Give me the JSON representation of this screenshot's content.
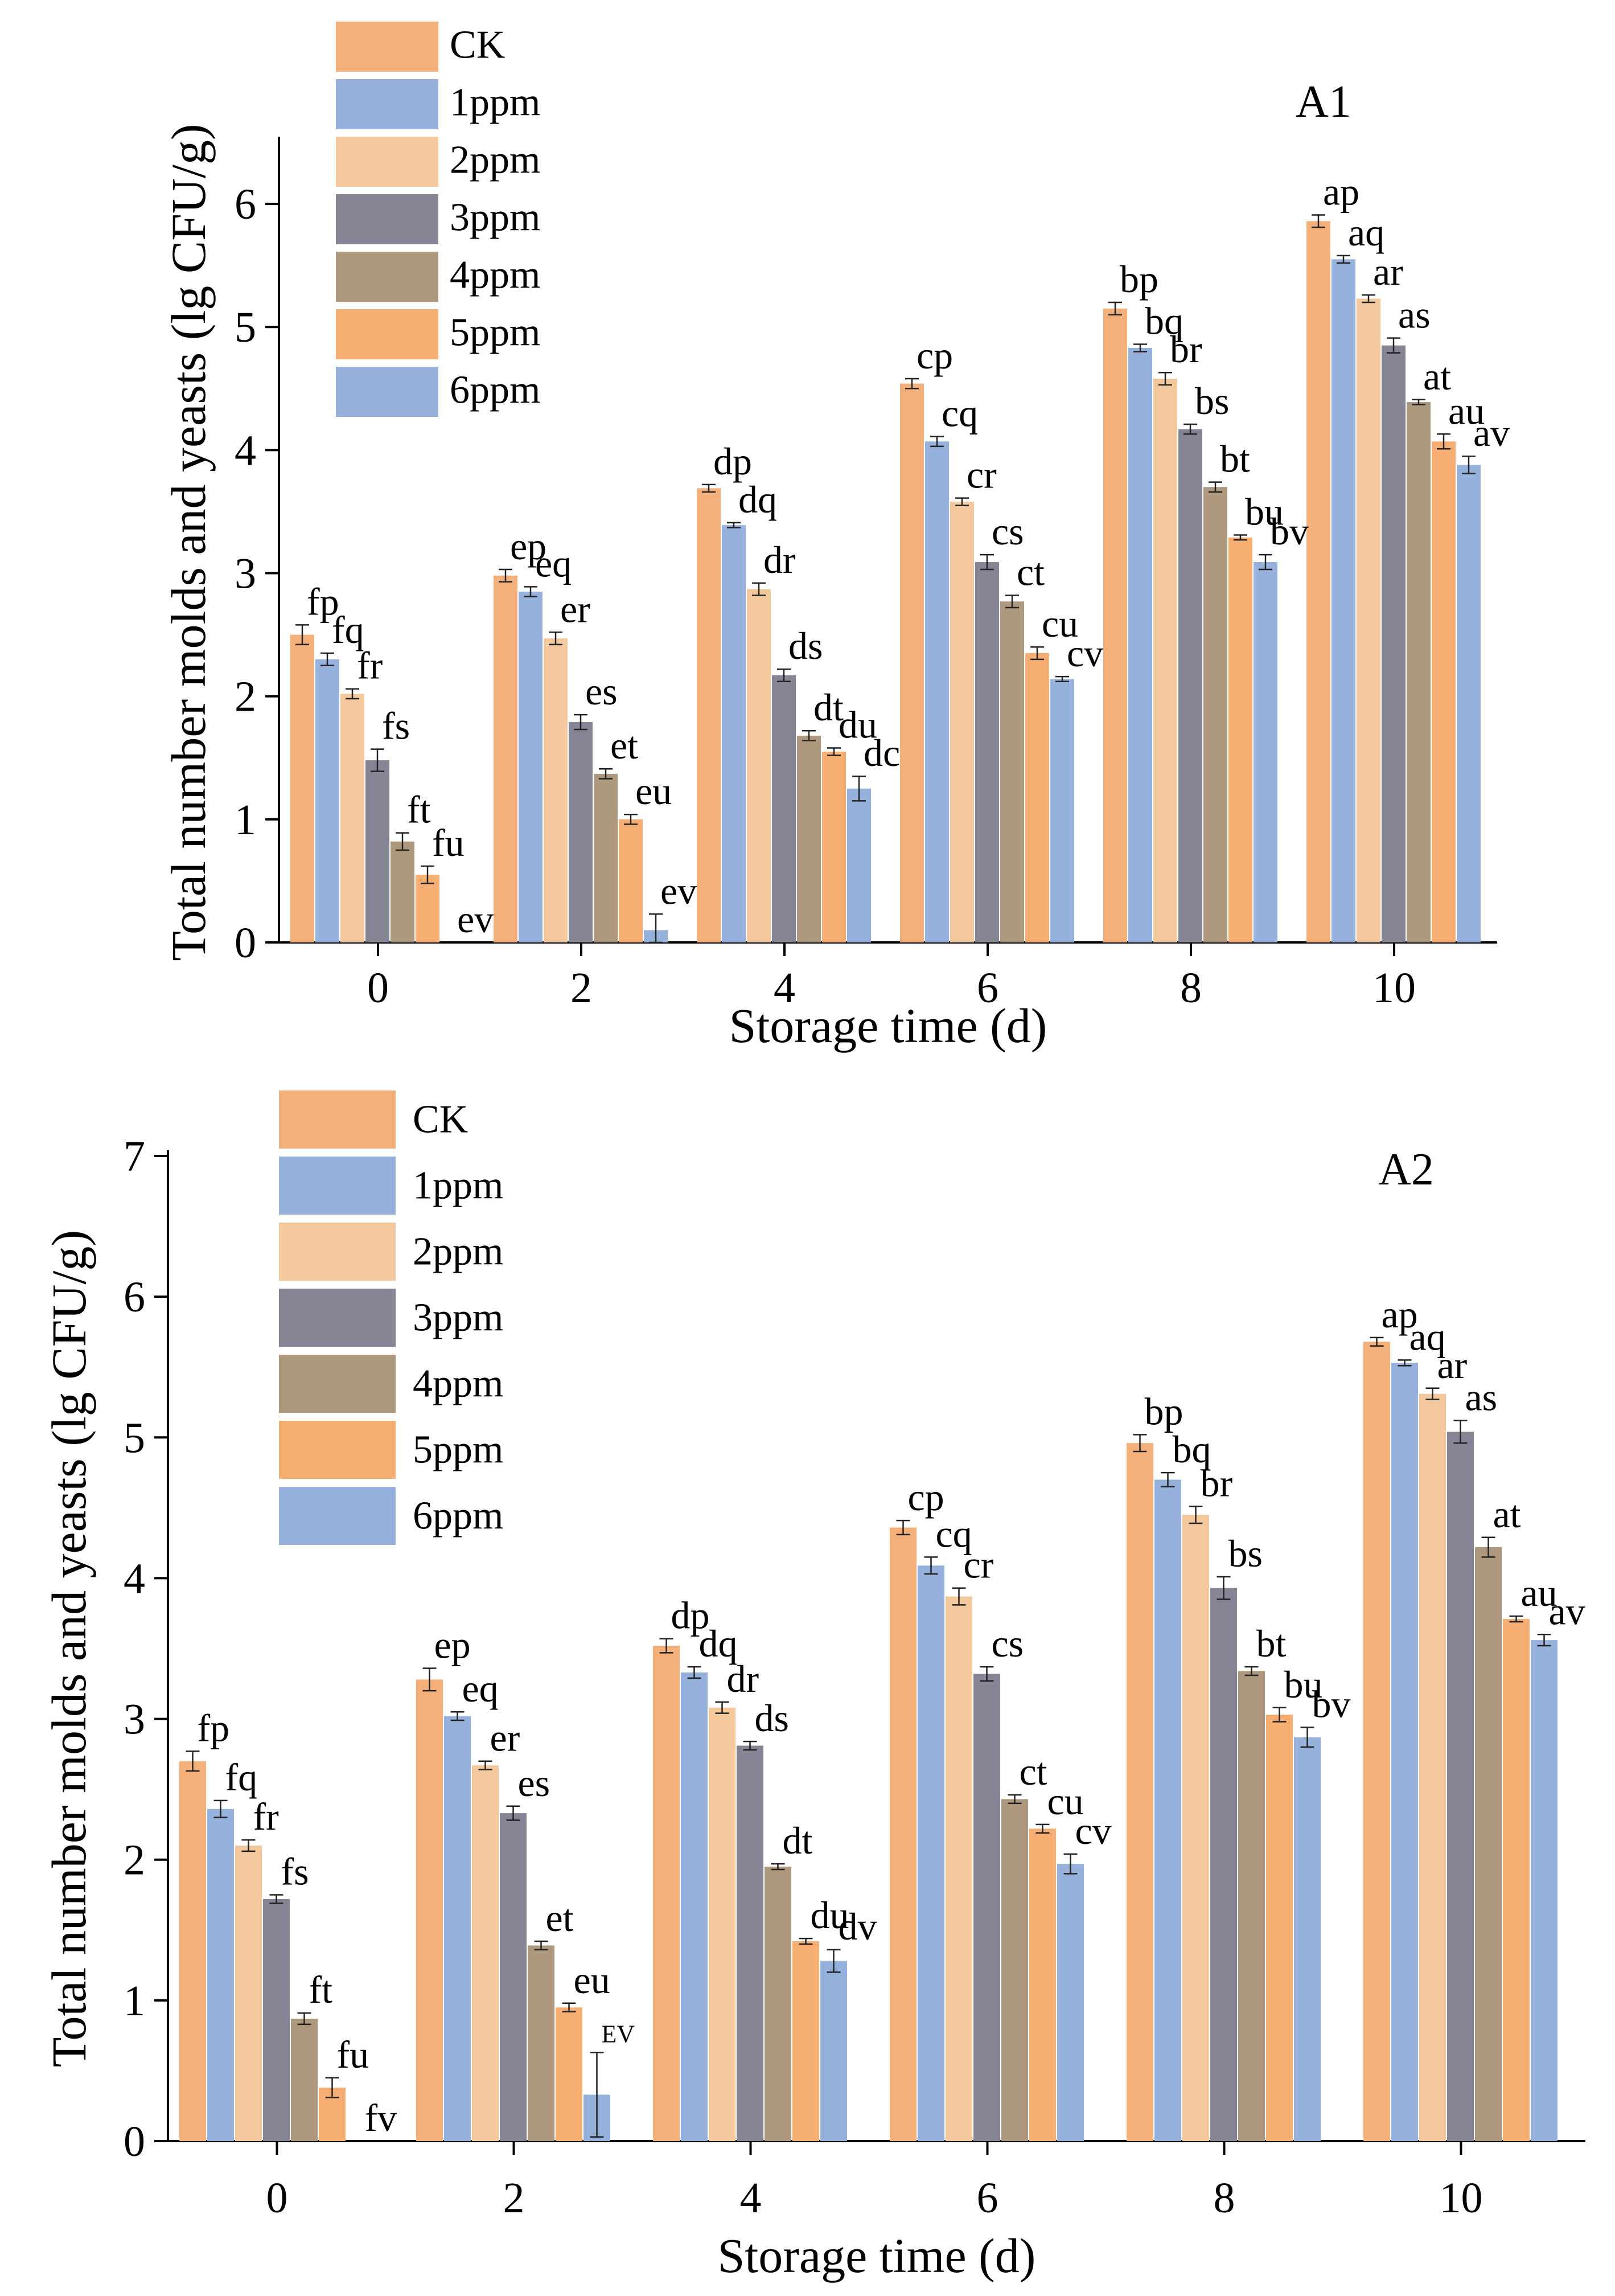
{
  "chart_data": [
    {
      "type": "bar",
      "title": "A1",
      "xlabel": "Storage time (d)",
      "ylabel": "Total number molds and yeasts (lg CFU/g)",
      "categories": [
        "0",
        "2",
        "4",
        "6",
        "8",
        "10"
      ],
      "ylim": [
        0,
        6.5
      ],
      "yticks": [
        0,
        1,
        2,
        3,
        4,
        5,
        6
      ],
      "series": [
        {
          "name": "CK",
          "color": "#F4B07A",
          "values": [
            2.5,
            2.98,
            3.69,
            4.54,
            5.15,
            5.86
          ],
          "errors": [
            0.08,
            0.05,
            0.03,
            0.04,
            0.05,
            0.05
          ],
          "labels": [
            "fp",
            "ep",
            "dp",
            "cp",
            "bp",
            "ap"
          ]
        },
        {
          "name": "1ppm",
          "color": "#96B2DC",
          "values": [
            2.3,
            2.85,
            3.39,
            4.07,
            4.83,
            5.55
          ],
          "errors": [
            0.05,
            0.04,
            0.02,
            0.04,
            0.03,
            0.03
          ],
          "labels": [
            "fq",
            "eq",
            "dq",
            "cq",
            "bq",
            "aq"
          ]
        },
        {
          "name": "2ppm",
          "color": "#F2C89C",
          "values": [
            2.02,
            2.47,
            2.87,
            3.58,
            4.58,
            5.23
          ],
          "errors": [
            0.04,
            0.05,
            0.05,
            0.03,
            0.05,
            0.03
          ],
          "labels": [
            "fr",
            "er",
            "dr",
            "cr",
            "br",
            "ar"
          ]
        },
        {
          "name": "3ppm",
          "color": "#858595",
          "values": [
            1.48,
            1.79,
            2.17,
            3.09,
            4.17,
            4.85
          ],
          "errors": [
            0.09,
            0.06,
            0.05,
            0.06,
            0.04,
            0.06
          ],
          "labels": [
            "fs",
            "es",
            "ds",
            "cs",
            "bs",
            "as"
          ]
        },
        {
          "name": "4ppm",
          "color": "#AE987E",
          "values": [
            0.82,
            1.37,
            1.68,
            2.77,
            3.7,
            4.39
          ],
          "errors": [
            0.07,
            0.04,
            0.04,
            0.05,
            0.04,
            0.02
          ],
          "labels": [
            "ft",
            "et",
            "dt",
            "ct",
            "bt",
            "at"
          ]
        },
        {
          "name": "5ppm",
          "color": "#F7AE72",
          "values": [
            0.55,
            1.0,
            1.55,
            2.35,
            3.29,
            4.07
          ],
          "errors": [
            0.07,
            0.04,
            0.03,
            0.05,
            0.02,
            0.06
          ],
          "labels": [
            "fu",
            "eu",
            "du",
            "cu",
            "bu",
            "au"
          ]
        },
        {
          "name": "6ppm",
          "color": "#96B2DC",
          "values": [
            0.0,
            0.1,
            1.25,
            2.14,
            3.09,
            3.88
          ],
          "errors": [
            0.0,
            0.13,
            0.1,
            0.02,
            0.06,
            0.07
          ],
          "labels": [
            "ev",
            "ev",
            "dc",
            "cv",
            "bv",
            "av"
          ]
        }
      ]
    },
    {
      "type": "bar",
      "title": "A2",
      "xlabel": "Storage time (d)",
      "ylabel": "Total number molds and yeasts (lg CFU/g)",
      "categories": [
        "0",
        "2",
        "4",
        "6",
        "8",
        "10"
      ],
      "ylim": [
        0,
        7
      ],
      "yticks": [
        0,
        1,
        2,
        3,
        4,
        5,
        6,
        7
      ],
      "series": [
        {
          "name": "CK",
          "color": "#F4B07A",
          "values": [
            2.7,
            3.28,
            3.52,
            4.36,
            4.96,
            5.68
          ],
          "errors": [
            0.07,
            0.08,
            0.05,
            0.05,
            0.06,
            0.03
          ],
          "labels": [
            "fp",
            "ep",
            "dp",
            "cp",
            "bp",
            "ap"
          ]
        },
        {
          "name": "1ppm",
          "color": "#96B2DC",
          "values": [
            2.36,
            3.02,
            3.33,
            4.09,
            4.7,
            5.53
          ],
          "errors": [
            0.06,
            0.03,
            0.04,
            0.06,
            0.05,
            0.02
          ],
          "labels": [
            "fq",
            "eq",
            "dq",
            "cq",
            "bq",
            "aq"
          ]
        },
        {
          "name": "2ppm",
          "color": "#F2C89C",
          "values": [
            2.1,
            2.67,
            3.08,
            3.87,
            4.45,
            5.31
          ],
          "errors": [
            0.04,
            0.03,
            0.04,
            0.06,
            0.06,
            0.04
          ],
          "labels": [
            "fr",
            "er",
            "dr",
            "cr",
            "br",
            "ar"
          ]
        },
        {
          "name": "3ppm",
          "color": "#858595",
          "values": [
            1.72,
            2.33,
            2.81,
            3.32,
            3.93,
            5.04
          ],
          "errors": [
            0.03,
            0.05,
            0.03,
            0.05,
            0.08,
            0.08
          ],
          "labels": [
            "fs",
            "es",
            "ds",
            "cs",
            "bs",
            "as"
          ]
        },
        {
          "name": "4ppm",
          "color": "#AE987E",
          "values": [
            0.87,
            1.39,
            1.95,
            2.43,
            3.34,
            4.22
          ],
          "errors": [
            0.04,
            0.03,
            0.02,
            0.03,
            0.03,
            0.07
          ],
          "labels": [
            "ft",
            "et",
            "dt",
            "ct",
            "bt",
            "at"
          ]
        },
        {
          "name": "5ppm",
          "color": "#F7AE72",
          "values": [
            0.38,
            0.95,
            1.42,
            2.22,
            3.03,
            3.71
          ],
          "errors": [
            0.07,
            0.03,
            0.02,
            0.03,
            0.05,
            0.02
          ],
          "labels": [
            "fu",
            "eu",
            "du",
            "cu",
            "bu",
            "au"
          ]
        },
        {
          "name": "6ppm",
          "color": "#96B2DC",
          "values": [
            0.0,
            0.33,
            1.28,
            1.97,
            2.87,
            3.56
          ],
          "errors": [
            0.0,
            0.3,
            0.08,
            0.07,
            0.07,
            0.04
          ],
          "labels": [
            "fv",
            "EV",
            "dv",
            "cv",
            "bv",
            "av"
          ]
        }
      ]
    }
  ]
}
